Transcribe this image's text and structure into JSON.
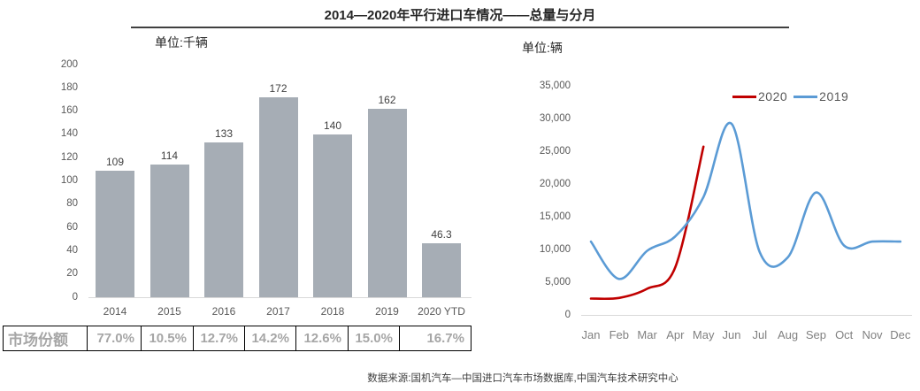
{
  "title": "2014—2020年平行进口车情况——总量与分月",
  "source_note": "数据来源:国机汽车—中国进口汽车市场数据库,中国汽车技术研究中心",
  "colors": {
    "bar": "#a6adb5",
    "series_2020": "#c00000",
    "series_2019": "#5b9bd5",
    "axis_text": "#595959",
    "gridline": "#d9d9d9",
    "table_text": "#a6a6a6"
  },
  "chart_data": [
    {
      "type": "bar",
      "unit_label": "单位:千辆",
      "categories": [
        "2014",
        "2015",
        "2016",
        "2017",
        "2018",
        "2019",
        "2020 YTD"
      ],
      "values": [
        109,
        114,
        133,
        172,
        140,
        162,
        46.3
      ],
      "data_labels": [
        "109",
        "114",
        "133",
        "172",
        "140",
        "162",
        "46.3"
      ],
      "ylim": [
        0,
        200
      ],
      "yticks": [
        0,
        20,
        40,
        60,
        80,
        100,
        120,
        140,
        160,
        180,
        200
      ],
      "grid": false,
      "bar_color": "#a6adb5",
      "market_share_row": {
        "label": "市场份额",
        "values": [
          "77.0%",
          "10.5%",
          "12.7%",
          "14.2%",
          "12.6%",
          "15.0%",
          "16.7%"
        ]
      }
    },
    {
      "type": "line",
      "unit_label": "单位:辆",
      "x": [
        "Jan",
        "Feb",
        "Mar",
        "Apr",
        "May",
        "Jun",
        "Jul",
        "Aug",
        "Sep",
        "Oct",
        "Nov",
        "Dec"
      ],
      "ylim": [
        0,
        35000
      ],
      "ytick_labels": [
        "0",
        "5,000",
        "10,000",
        "15,000",
        "20,000",
        "25,000",
        "30,000",
        "35,000"
      ],
      "grid": false,
      "legend_position": "top-right-inside",
      "series": [
        {
          "name": "2020",
          "color": "#c00000",
          "values": [
            2500,
            2600,
            4000,
            7300,
            25700,
            null,
            null,
            null,
            null,
            null,
            null,
            null
          ]
        },
        {
          "name": "2019",
          "color": "#5b9bd5",
          "values": [
            11200,
            5500,
            9800,
            12000,
            18000,
            29200,
            9600,
            8800,
            18700,
            10600,
            11200,
            11200
          ]
        }
      ]
    }
  ]
}
